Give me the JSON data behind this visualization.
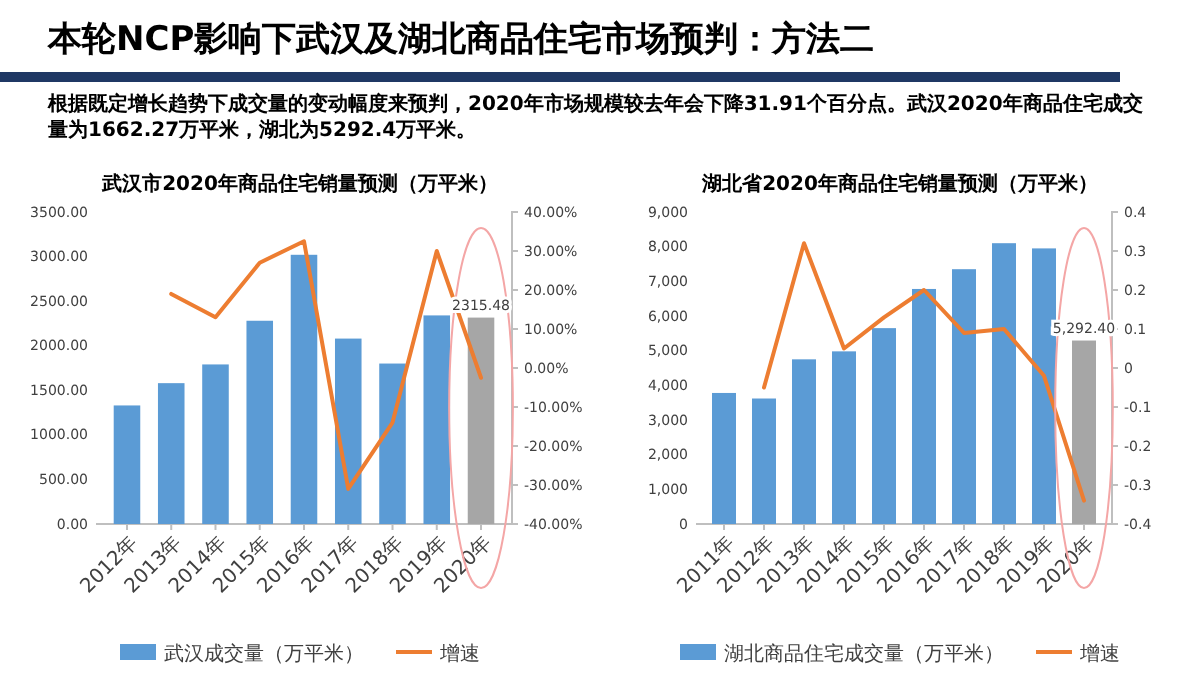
{
  "chart_data": [
    {
      "type": "other",
      "title": "本轮NCP影响下武汉及湖北商品住宅市场预判：方法二",
      "annotations": [
        "根据既定增长趋势下成交量的变动幅度来预判，2020年市场规模较去年会下降31.91个百分点。武汉2020年商品住宅成交量为1662.27万平米，湖北为5292.4万平米。"
      ]
    },
    {
      "type": "bar",
      "title": "武汉市2020年商品住宅销量预测（万平米）",
      "categories": [
        "2012年",
        "2013年",
        "2014年",
        "2015年",
        "2016年",
        "2017年",
        "2018年",
        "2019年",
        "2020年"
      ],
      "series": [
        {
          "name": "武汉成交量（万平米）",
          "type": "bar",
          "color": "#5b9bd5",
          "colors": [
            "#5b9bd5",
            "#5b9bd5",
            "#5b9bd5",
            "#5b9bd5",
            "#5b9bd5",
            "#5b9bd5",
            "#5b9bd5",
            "#5b9bd5",
            "#a6a6a6"
          ],
          "values": [
            1330,
            1580,
            1790,
            2280,
            3020,
            2080,
            1800,
            2340,
            2315.48
          ],
          "value_labels": [
            null,
            null,
            null,
            null,
            null,
            null,
            null,
            null,
            "2315.48"
          ]
        },
        {
          "name": "增速",
          "type": "line",
          "axis": "y2",
          "color": "#ed7d31",
          "values": [
            null,
            19,
            13,
            27,
            32.5,
            -31,
            -14,
            30,
            -2.5
          ]
        }
      ],
      "ylim": [
        0,
        3500
      ],
      "yticks": [
        {
          "value": 0,
          "label": "0.00"
        },
        {
          "value": 500,
          "label": "500.00"
        },
        {
          "value": 1000,
          "label": "1000.00"
        },
        {
          "value": 1500,
          "label": "1500.00"
        },
        {
          "value": 2000,
          "label": "2000.00"
        },
        {
          "value": 2500,
          "label": "2500.00"
        },
        {
          "value": 3000,
          "label": "3000.00"
        },
        {
          "value": 3500,
          "label": "3500.00"
        }
      ],
      "y2lim": [
        -40,
        40
      ],
      "y2ticks": [
        {
          "value": -40,
          "label": "-40.00%"
        },
        {
          "value": -30,
          "label": "-30.00%"
        },
        {
          "value": -20,
          "label": "-20.00%"
        },
        {
          "value": -10,
          "label": "-10.00%"
        },
        {
          "value": 0,
          "label": "0.00%"
        },
        {
          "value": 10,
          "label": "10.00%"
        },
        {
          "value": 20,
          "label": "20.00%"
        },
        {
          "value": 30,
          "label": "30.00%"
        },
        {
          "value": 40,
          "label": "40.00%"
        }
      ],
      "legend": "bottom"
    },
    {
      "type": "bar",
      "title": "湖北省2020年商品住宅销量预测（万平米）",
      "categories": [
        "2011年",
        "2012年",
        "2013年",
        "2014年",
        "2015年",
        "2016年",
        "2017年",
        "2018年",
        "2019年",
        "2020年"
      ],
      "series": [
        {
          "name": "湖北商品住宅成交量（万平米）",
          "type": "bar",
          "color": "#5b9bd5",
          "colors": [
            "#5b9bd5",
            "#5b9bd5",
            "#5b9bd5",
            "#5b9bd5",
            "#5b9bd5",
            "#5b9bd5",
            "#5b9bd5",
            "#5b9bd5",
            "#5b9bd5",
            "#a6a6a6"
          ],
          "values": [
            3780,
            3620,
            4750,
            4980,
            5650,
            6780,
            7350,
            8100,
            7950,
            5292.4
          ],
          "value_labels": [
            null,
            null,
            null,
            null,
            null,
            null,
            null,
            null,
            null,
            "5,292.40"
          ]
        },
        {
          "name": "增速",
          "type": "line",
          "axis": "y2",
          "color": "#ed7d31",
          "values": [
            null,
            -0.05,
            0.32,
            0.05,
            0.13,
            0.2,
            0.09,
            0.1,
            -0.02,
            -0.34
          ]
        }
      ],
      "ylim": [
        0,
        9000
      ],
      "yticks": [
        0,
        {
          "value": 1000,
          "label": "1,000"
        },
        {
          "value": 2000,
          "label": "2,000"
        },
        {
          "value": 3000,
          "label": "3,000"
        },
        {
          "value": 4000,
          "label": "4,000"
        },
        {
          "value": 5000,
          "label": "5,000"
        },
        {
          "value": 6000,
          "label": "6,000"
        },
        {
          "value": 7000,
          "label": "7,000"
        },
        {
          "value": 8000,
          "label": "8,000"
        },
        {
          "value": 9000,
          "label": "9,000"
        }
      ],
      "y2lim": [
        -0.4,
        0.4
      ],
      "y2ticks": [
        -0.4,
        -0.3,
        -0.2,
        -0.1,
        0,
        0.1,
        0.2,
        0.3,
        0.4
      ],
      "legend": "bottom"
    }
  ]
}
